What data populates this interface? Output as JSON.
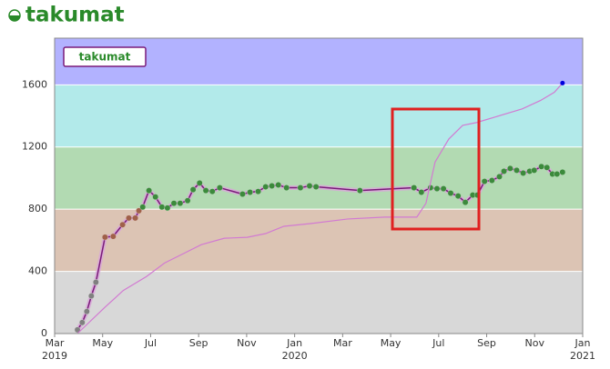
{
  "chart_data": {
    "type": "line",
    "title": "takumat",
    "xlim": [
      0,
      22
    ],
    "ylim": [
      0,
      1900
    ],
    "xticks": [
      {
        "value": 0,
        "label": "Mar\n2019"
      },
      {
        "value": 2,
        "label": "May"
      },
      {
        "value": 4,
        "label": "Jul"
      },
      {
        "value": 6,
        "label": "Sep"
      },
      {
        "value": 8,
        "label": "Nov"
      },
      {
        "value": 10,
        "label": "Jan\n2020"
      },
      {
        "value": 12,
        "label": "Mar"
      },
      {
        "value": 14,
        "label": "May"
      },
      {
        "value": 16,
        "label": "Jul"
      },
      {
        "value": 18,
        "label": "Sep"
      },
      {
        "value": 20,
        "label": "Nov"
      },
      {
        "value": 22,
        "label": "Jan\n2021"
      }
    ],
    "yticks": [
      0,
      400,
      800,
      1200,
      1600
    ],
    "bands": [
      {
        "from": 0,
        "to": 400,
        "color": "#d8d8d8"
      },
      {
        "from": 400,
        "to": 800,
        "color": "#dcc4b4"
      },
      {
        "from": 800,
        "to": 1200,
        "color": "#b2dab2"
      },
      {
        "from": 1200,
        "to": 1600,
        "color": "#b2eaea"
      },
      {
        "from": 1600,
        "to": 1900,
        "color": "#b2b2ff"
      }
    ],
    "grid": true,
    "legend": "top-left",
    "series": [
      {
        "name": "takumat",
        "color": "#7a1a7a",
        "x": [
          0.95,
          1.15,
          1.34,
          1.53,
          1.72,
          2.1,
          2.44,
          2.83,
          3.09,
          3.36,
          3.51,
          3.67,
          3.93,
          4.2,
          4.47,
          4.7,
          4.97,
          5.23,
          5.54,
          5.77,
          6.04,
          6.3,
          6.57,
          6.88,
          7.83,
          8.14,
          8.48,
          8.79,
          9.05,
          9.32,
          9.66,
          10.24,
          10.62,
          10.89,
          12.72,
          14.97,
          15.28,
          15.66,
          15.93,
          16.2,
          16.5,
          16.81,
          17.11,
          17.42,
          17.61,
          17.91,
          18.22,
          18.53,
          18.72,
          18.98,
          19.25,
          19.52,
          19.79,
          19.98,
          20.28,
          20.51,
          20.74,
          20.93,
          21.16
        ],
        "values": [
          24,
          71,
          142,
          242,
          330,
          620,
          625,
          700,
          743,
          743,
          790,
          814,
          920,
          879,
          814,
          808,
          838,
          838,
          855,
          926,
          968,
          920,
          914,
          938,
          897,
          909,
          914,
          944,
          950,
          956,
          938,
          938,
          950,
          944,
          920,
          938,
          909,
          938,
          932,
          932,
          903,
          885,
          844,
          891,
          891,
          979,
          985,
          1009,
          1044,
          1062,
          1050,
          1032,
          1044,
          1050,
          1074,
          1068,
          1026,
          1026,
          1038
        ]
      },
      {
        "color": "#d27ad2",
        "marker_color": "#0000dd",
        "x": [
          0.95,
          2.1,
          2.86,
          3.82,
          4.58,
          5.35,
          6.11,
          7.07,
          8.02,
          8.79,
          9.55,
          10.7,
          12.22,
          13.75,
          15.09,
          15.47,
          15.85,
          16.42,
          17.0,
          17.57,
          18.33,
          19.48,
          20.24,
          20.82,
          21.16
        ],
        "values": [
          0,
          170,
          277,
          366,
          454,
          513,
          572,
          613,
          619,
          643,
          690,
          708,
          737,
          749,
          749,
          838,
          1103,
          1251,
          1339,
          1357,
          1392,
          1445,
          1499,
          1552,
          1611
        ]
      }
    ]
  }
}
